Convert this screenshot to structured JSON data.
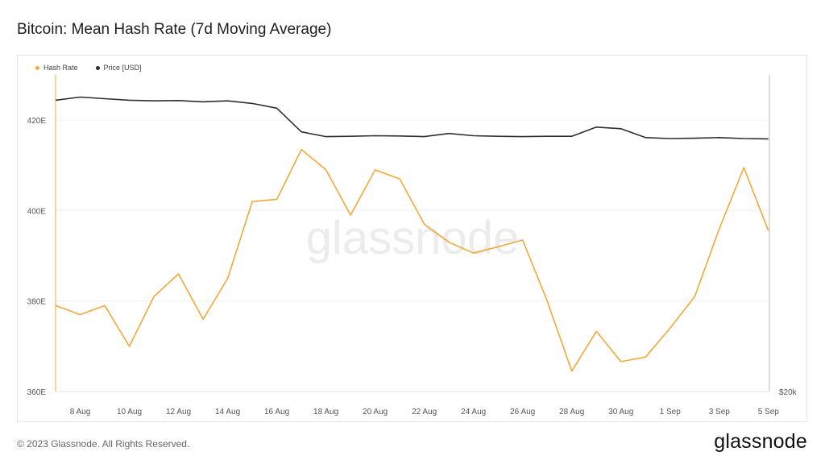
{
  "title": "Bitcoin: Mean Hash Rate (7d Moving Average)",
  "footer": "© 2023 Glassnode. All Rights Reserved.",
  "brand": "glassnode",
  "watermark": "glassnode",
  "colors": {
    "hash": "#f2a93b",
    "price": "#2e2e32",
    "axis": "#888888",
    "grid": "#f0f0f0"
  },
  "chart_data": {
    "type": "line",
    "legend_position": "top-left",
    "grid": true,
    "x": [
      "7 Aug",
      "8 Aug",
      "9 Aug",
      "10 Aug",
      "11 Aug",
      "12 Aug",
      "13 Aug",
      "14 Aug",
      "15 Aug",
      "16 Aug",
      "17 Aug",
      "18 Aug",
      "19 Aug",
      "20 Aug",
      "21 Aug",
      "22 Aug",
      "23 Aug",
      "24 Aug",
      "25 Aug",
      "26 Aug",
      "27 Aug",
      "28 Aug",
      "29 Aug",
      "30 Aug",
      "31 Aug",
      "1 Sep",
      "2 Sep",
      "3 Sep",
      "4 Sep",
      "5 Sep"
    ],
    "x_ticks": [
      "8 Aug",
      "10 Aug",
      "12 Aug",
      "14 Aug",
      "16 Aug",
      "18 Aug",
      "20 Aug",
      "22 Aug",
      "24 Aug",
      "26 Aug",
      "28 Aug",
      "30 Aug",
      "1 Sep",
      "3 Sep",
      "5 Sep"
    ],
    "left_axis": {
      "ticks": [
        "360E",
        "380E",
        "400E",
        "420E"
      ],
      "tick_values": [
        360,
        380,
        400,
        420
      ],
      "range": [
        360,
        430
      ]
    },
    "right_axis": {
      "ticks": [
        "$20k"
      ],
      "tick_values": [
        20000
      ]
    },
    "series": [
      {
        "name": "Hash Rate",
        "axis": "left",
        "values": [
          379,
          377,
          379,
          370,
          381,
          386,
          376,
          385,
          402,
          402.5,
          413.5,
          409,
          399,
          409,
          407,
          397,
          393,
          390.6,
          392,
          393.5,
          380,
          364.5,
          373.3,
          366.6,
          367.6,
          374,
          381,
          396,
          409.5,
          395.5
        ]
      },
      {
        "name": "Price [USD]",
        "axis": "right",
        "values": [
          29200,
          29300,
          29250,
          29200,
          29180,
          29190,
          29150,
          29180,
          29100,
          28950,
          28200,
          28050,
          28060,
          28080,
          28070,
          28050,
          28150,
          28080,
          28060,
          28050,
          28060,
          28060,
          28350,
          28300,
          28020,
          27990,
          28000,
          28020,
          27990,
          27980
        ],
        "range": [
          20000,
          30000
        ]
      }
    ]
  }
}
